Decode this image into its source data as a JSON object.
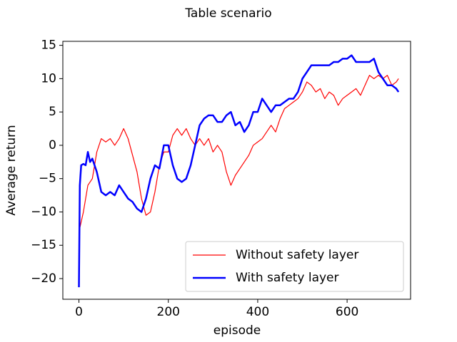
{
  "chart_data": {
    "type": "line",
    "title": "Table scenario",
    "x_label": "episode",
    "y_label": "Average return",
    "xlim": [
      -36,
      742
    ],
    "ylim": [
      -23.1,
      15.6
    ],
    "xticks": [
      0,
      200,
      400,
      600
    ],
    "yticks": [
      {
        "value": -20,
        "label": "−20"
      },
      {
        "value": -15,
        "label": "−15"
      },
      {
        "value": -10,
        "label": "−10"
      },
      {
        "value": -5,
        "label": "−5"
      },
      0,
      5,
      10,
      15
    ],
    "grid": false,
    "legend": "lower right",
    "series": [
      {
        "name": "Without safety layer",
        "color": "#ff0000",
        "width": 1.2,
        "x": [
          0,
          10,
          20,
          30,
          40,
          50,
          60,
          70,
          80,
          90,
          100,
          110,
          120,
          130,
          140,
          150,
          160,
          170,
          180,
          190,
          200,
          210,
          220,
          230,
          240,
          250,
          260,
          270,
          280,
          290,
          300,
          310,
          320,
          330,
          340,
          350,
          360,
          370,
          380,
          390,
          400,
          410,
          420,
          430,
          440,
          450,
          460,
          470,
          480,
          490,
          500,
          510,
          520,
          530,
          540,
          550,
          560,
          570,
          580,
          590,
          600,
          610,
          620,
          630,
          640,
          650,
          660,
          670,
          680,
          690,
          700,
          710,
          715
        ],
        "values": [
          -13,
          -10,
          -6,
          -5,
          -1,
          1,
          0.5,
          1,
          0,
          1,
          2.5,
          1,
          -1.5,
          -4,
          -8,
          -10.5,
          -10,
          -7,
          -3,
          -1,
          -1,
          1.5,
          2.5,
          1.5,
          2.5,
          1,
          0,
          1,
          0,
          1,
          -1,
          0,
          -1,
          -4,
          -6,
          -4.5,
          -3.5,
          -2.5,
          -1.5,
          0,
          0.5,
          1,
          2,
          3,
          2,
          4,
          5.5,
          6,
          6.5,
          7,
          8,
          9.5,
          9,
          8,
          8.5,
          7,
          8,
          7.5,
          6,
          7,
          7.5,
          8,
          8.5,
          7.5,
          9,
          10.5,
          10,
          10.5,
          10,
          10.5,
          9,
          9.5,
          10
        ]
      },
      {
        "name": "With safety layer",
        "color": "#0000ff",
        "width": 2.5,
        "x": [
          0,
          2,
          5,
          10,
          15,
          20,
          25,
          30,
          40,
          50,
          60,
          70,
          80,
          90,
          100,
          110,
          120,
          130,
          140,
          150,
          160,
          170,
          180,
          190,
          200,
          210,
          220,
          230,
          240,
          250,
          260,
          270,
          280,
          290,
          300,
          310,
          320,
          330,
          340,
          350,
          360,
          370,
          380,
          390,
          400,
          410,
          420,
          430,
          440,
          450,
          460,
          470,
          480,
          490,
          500,
          510,
          520,
          530,
          540,
          550,
          560,
          570,
          580,
          590,
          600,
          610,
          620,
          630,
          640,
          650,
          660,
          670,
          680,
          690,
          700,
          710,
          715
        ],
        "values": [
          -21.3,
          -6,
          -3,
          -2.8,
          -3,
          -1,
          -2.5,
          -2,
          -4,
          -7,
          -7.5,
          -7,
          -7.5,
          -6,
          -7,
          -8,
          -8.5,
          -9.5,
          -10,
          -8,
          -5,
          -3,
          -3.5,
          0,
          0,
          -3,
          -5,
          -5.5,
          -5,
          -3,
          0,
          3,
          4,
          4.5,
          4.5,
          3.5,
          3.5,
          4.5,
          5,
          3,
          3.5,
          2,
          3,
          5,
          5,
          7,
          6,
          5,
          6,
          6,
          6.5,
          7,
          7,
          8,
          10,
          11,
          12,
          12,
          12,
          12,
          12,
          12.5,
          12.5,
          13,
          13,
          13.5,
          12.5,
          12.5,
          12.5,
          12.5,
          13,
          11,
          10,
          9,
          9,
          8.5,
          8
        ]
      }
    ]
  }
}
